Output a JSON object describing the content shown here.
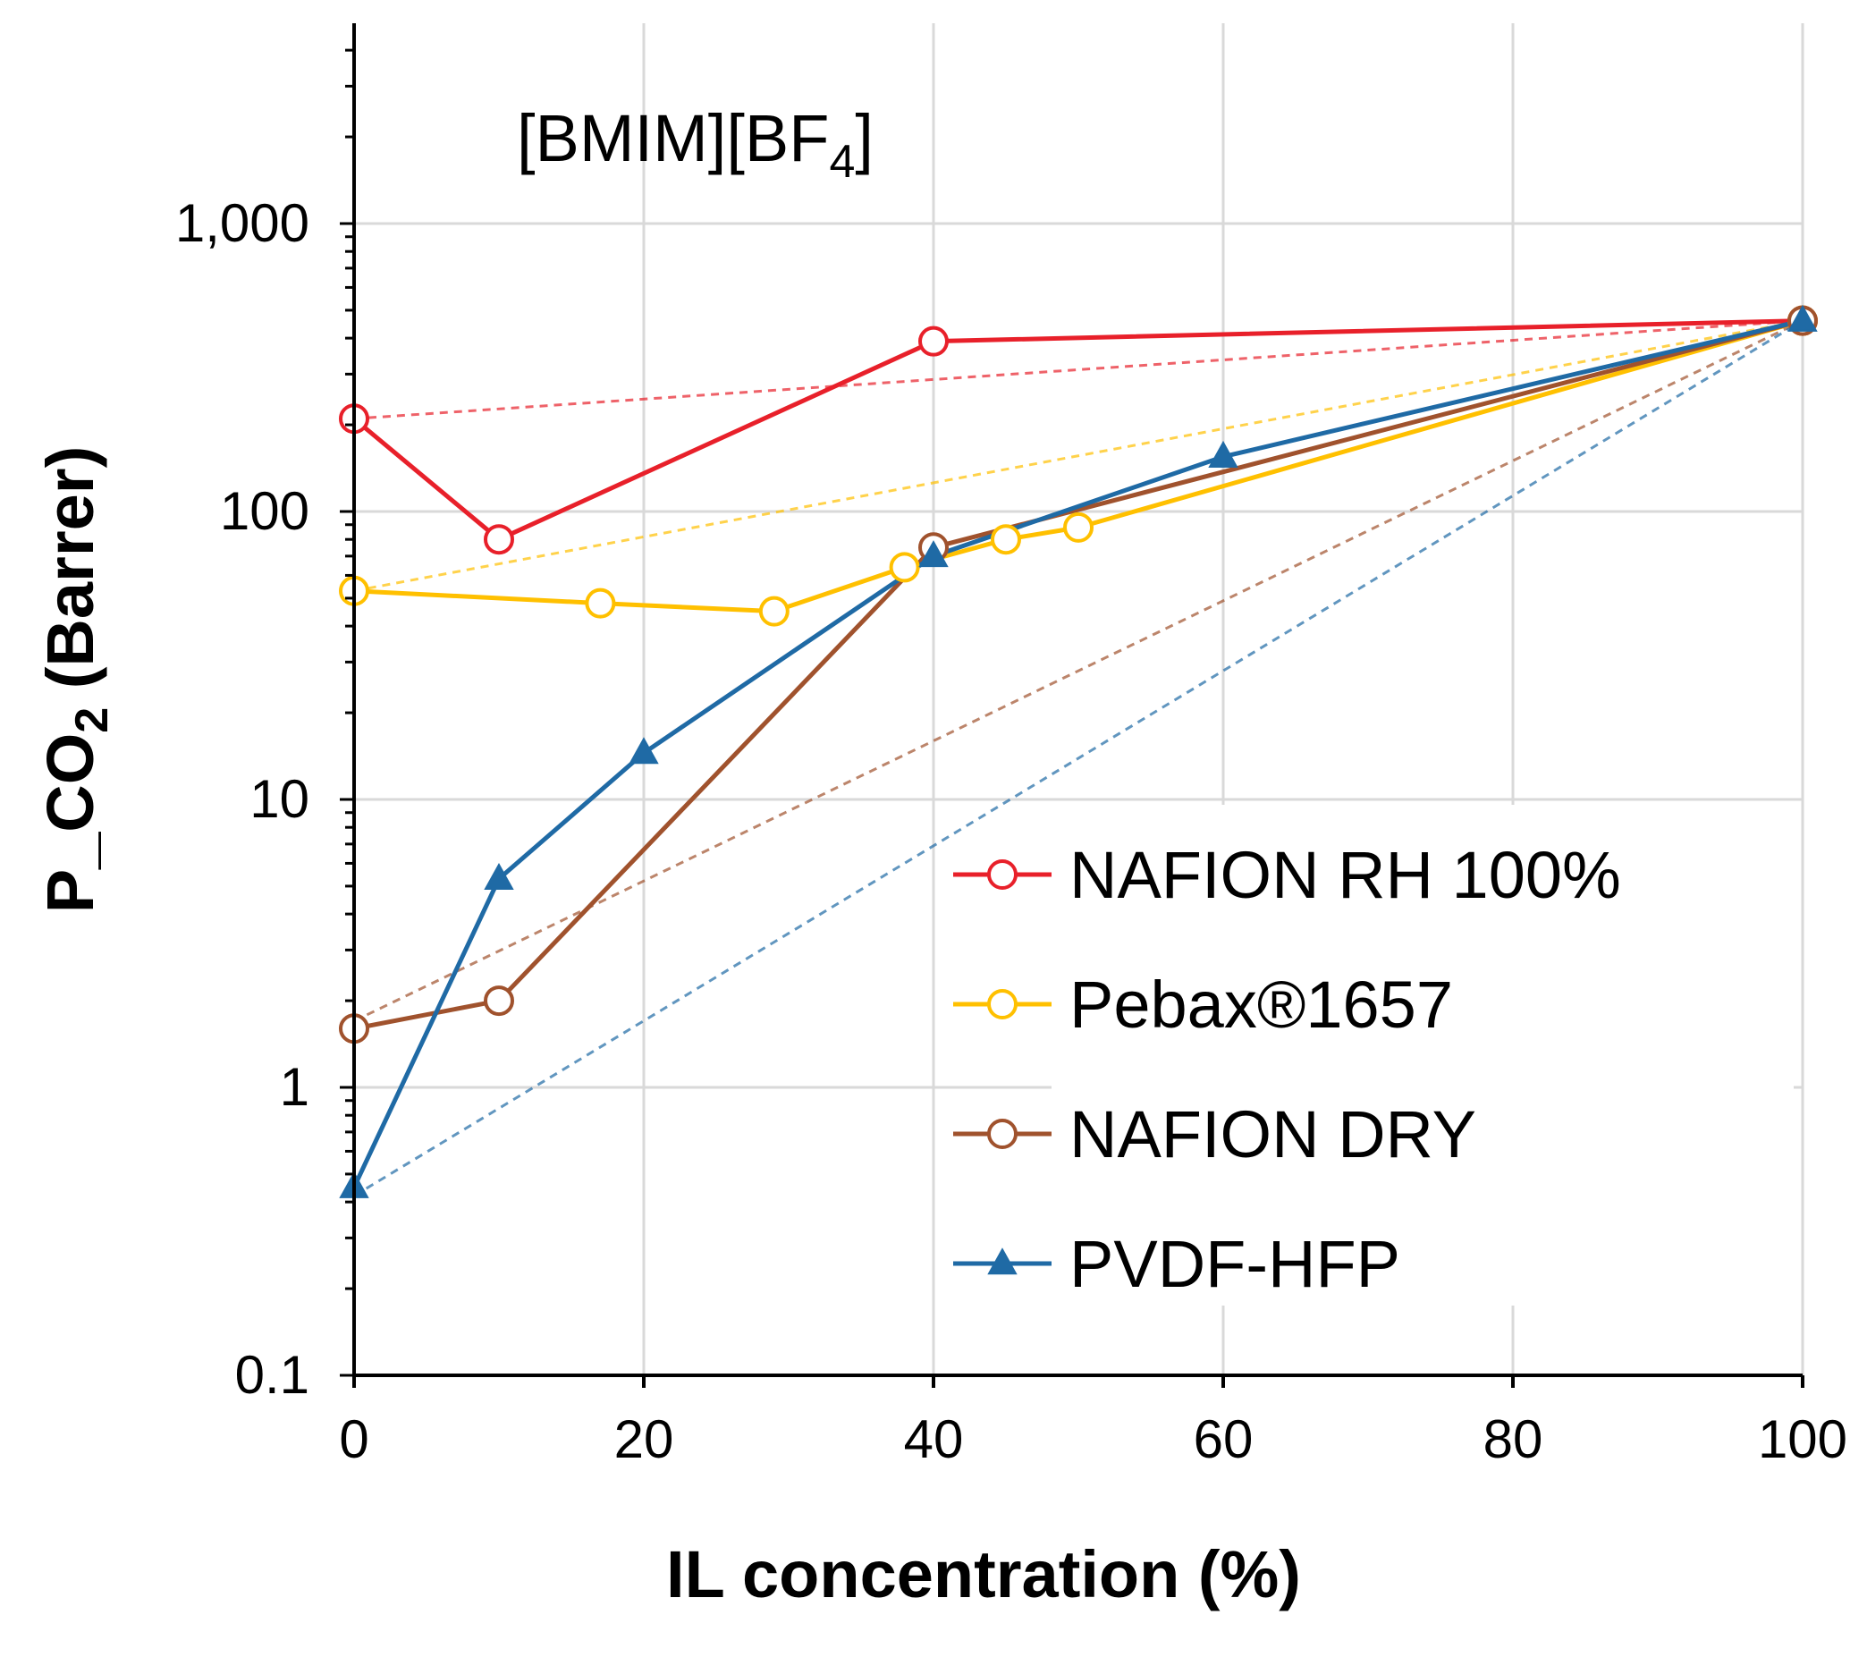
{
  "chart_data": {
    "type": "line",
    "annotation": {
      "main": "[BMIM][BF",
      "subscript": "4",
      "close": "]"
    },
    "xlabel": "IL concentration (%)",
    "ylabel": {
      "main": "P_CO",
      "subscript": "2",
      "rest": " (Barrer)"
    },
    "xlim": [
      0,
      100
    ],
    "ylim": [
      0.1,
      5000
    ],
    "yscale": "log",
    "xticks": [
      0,
      20,
      40,
      60,
      80,
      100
    ],
    "xtick_labels": [
      "0",
      "20",
      "40",
      "60",
      "80",
      "100"
    ],
    "yticks": [
      0.1,
      1,
      10,
      100,
      1000
    ],
    "ytick_labels": [
      "0.1",
      "1",
      "10",
      "100",
      "1,000"
    ],
    "grid": true,
    "legend_position": "lower-right",
    "series": [
      {
        "name": "NAFION RH 100%",
        "color": "#e8202a",
        "marker": "open-circle",
        "x": [
          0,
          10,
          40,
          100
        ],
        "y": [
          210,
          80,
          390,
          460
        ],
        "dashed_trend": {
          "x": [
            0,
            100
          ],
          "y": [
            210,
            460
          ]
        }
      },
      {
        "name": "Pebax®1657",
        "color": "#ffc000",
        "marker": "open-circle",
        "x": [
          0,
          17,
          29,
          38,
          45,
          50,
          100
        ],
        "y": [
          53,
          48,
          45,
          64,
          80,
          88,
          460
        ],
        "dashed_trend": {
          "x": [
            0,
            100
          ],
          "y": [
            53,
            460
          ]
        }
      },
      {
        "name": "NAFION DRY",
        "color": "#a0522d",
        "marker": "open-circle",
        "x": [
          0,
          10,
          40,
          100
        ],
        "y": [
          1.6,
          2.0,
          75,
          460
        ],
        "dashed_trend": {
          "x": [
            0,
            100
          ],
          "y": [
            1.7,
            460
          ]
        }
      },
      {
        "name": "PVDF-HFP",
        "color": "#1f6aa5",
        "marker": "filled-triangle",
        "x": [
          0,
          10,
          20,
          40,
          60,
          100
        ],
        "y": [
          0.45,
          5.3,
          14.5,
          70,
          155,
          460
        ],
        "dashed_trend": {
          "x": [
            0,
            100
          ],
          "y": [
            0.42,
            460
          ]
        }
      }
    ]
  },
  "colors": {
    "grid": "#d9d9d9",
    "axis": "#000000",
    "background": "#ffffff"
  }
}
